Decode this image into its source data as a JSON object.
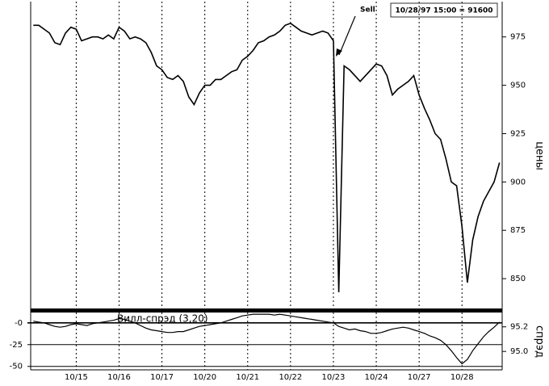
{
  "chart_data": [
    {
      "type": "line",
      "values": [
        981,
        981,
        979,
        977,
        972,
        971,
        977,
        980,
        979,
        973,
        974,
        975,
        975,
        974,
        976,
        974,
        980,
        978,
        974,
        975,
        974,
        972,
        967,
        960,
        958,
        954,
        953,
        955,
        952,
        944,
        940,
        946,
        950,
        950,
        953,
        953,
        955,
        957,
        958,
        963,
        965,
        968,
        972,
        973,
        975,
        976,
        978,
        981,
        982,
        980,
        978,
        977,
        976,
        977,
        978,
        977,
        973,
        843,
        960,
        958,
        955,
        952,
        955,
        958,
        961,
        960,
        955,
        945,
        948,
        950,
        952,
        955,
        945,
        938,
        932,
        925,
        922,
        912,
        900,
        898,
        877,
        848,
        870,
        882,
        890,
        895,
        900,
        910
      ],
      "color": "#000000",
      "ylim": [
        835,
        992
      ],
      "yticks": [
        850,
        875,
        900,
        925,
        950,
        975
      ],
      "y_label": "цены",
      "annotations": [
        "Sell",
        "10/28/97 15:00 = 91600"
      ]
    },
    {
      "type": "line",
      "categories": [
        null,
        null,
        null,
        null,
        null,
        null,
        null,
        null,
        "10/15",
        null,
        null,
        null,
        null,
        null,
        null,
        null,
        "10/16",
        null,
        null,
        null,
        null,
        null,
        null,
        null,
        "10/17",
        null,
        null,
        null,
        null,
        null,
        null,
        null,
        "10/20",
        null,
        null,
        null,
        null,
        null,
        null,
        null,
        "10/21",
        null,
        null,
        null,
        null,
        null,
        null,
        null,
        "10/22",
        null,
        null,
        null,
        null,
        null,
        null,
        null,
        "10/23",
        null,
        null,
        null,
        null,
        null,
        null,
        null,
        "10/24",
        null,
        null,
        null,
        null,
        null,
        null,
        null,
        "10/27",
        null,
        null,
        null,
        null,
        null,
        null,
        null,
        "10/28",
        null,
        null,
        null,
        null,
        null,
        null,
        null
      ],
      "series": [
        {
          "name": "Вилл-спрэд (3,20)",
          "color": "#000000",
          "values": [
            2,
            1,
            0,
            -2,
            -4,
            -5,
            -4,
            -2,
            -1,
            -2,
            -3,
            -1,
            0,
            1,
            2,
            3,
            5,
            4,
            2,
            0,
            -3,
            -6,
            -8,
            -9,
            -10,
            -11,
            -11,
            -10,
            -10,
            -8,
            -6,
            -4,
            -3,
            -2,
            -1,
            0,
            2,
            4,
            6,
            8,
            9,
            10,
            10,
            10,
            10,
            9,
            10,
            9,
            8,
            7,
            6,
            5,
            4,
            3,
            2,
            1,
            0,
            -4,
            -6,
            -8,
            -7,
            -9,
            -10,
            -12,
            -12,
            -11,
            -9,
            -7,
            -6,
            -5,
            -6,
            -8,
            -10,
            -12,
            -15,
            -17,
            -20,
            -25,
            -32,
            -40,
            -47,
            -42,
            -32,
            -24,
            -16,
            -10,
            -5,
            1
          ]
        }
      ],
      "ylim": [
        -54,
        11
      ],
      "yticks": [
        {
          "value": 0,
          "label": "-0"
        },
        -25,
        -50
      ],
      "y2lim": [
        94.85,
        95.31
      ],
      "y2ticks": [
        95.2,
        {
          "value": 95,
          "label": "95.0"
        }
      ],
      "y_label": "спрэд"
    }
  ]
}
